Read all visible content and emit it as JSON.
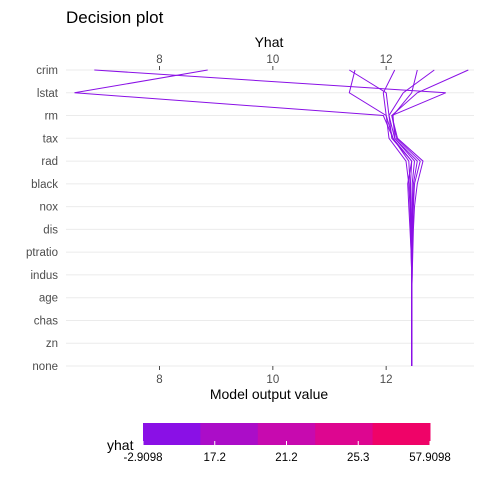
{
  "chart_data": {
    "type": "line",
    "title": "Decision plot",
    "xlabel_top": "Yhat",
    "xlabel": "Model output value",
    "xlim": [
      6.35,
      13.55
    ],
    "x_ticks": [
      8,
      10,
      12
    ],
    "features": [
      "none",
      "zn",
      "chas",
      "age",
      "indus",
      "ptratio",
      "dis",
      "nox",
      "black",
      "rad",
      "tax",
      "rm",
      "lstat",
      "crim"
    ],
    "series": [
      {
        "values": [
          12.45,
          12.45,
          12.45,
          12.45,
          12.45,
          12.44,
          12.43,
          12.42,
          12.4,
          12.35,
          12.05,
          12.0,
          11.35,
          11.45
        ]
      },
      {
        "values": [
          12.45,
          12.45,
          12.45,
          12.45,
          12.46,
          12.46,
          12.46,
          12.47,
          12.48,
          12.55,
          12.15,
          12.05,
          12.0,
          11.35
        ]
      },
      {
        "values": [
          12.45,
          12.45,
          12.45,
          12.45,
          12.46,
          12.47,
          12.48,
          12.5,
          12.55,
          12.65,
          12.2,
          12.1,
          12.55,
          13.45
        ]
      },
      {
        "values": [
          12.45,
          12.45,
          12.45,
          12.45,
          12.45,
          12.44,
          12.42,
          12.4,
          12.38,
          12.45,
          12.1,
          12.05,
          12.3,
          12.85
        ]
      },
      {
        "values": [
          12.45,
          12.45,
          12.45,
          12.45,
          12.45,
          12.45,
          12.45,
          12.46,
          12.46,
          12.5,
          12.15,
          12.12,
          12.45,
          12.55
        ]
      },
      {
        "values": [
          12.45,
          12.45,
          12.45,
          12.45,
          12.45,
          12.45,
          12.44,
          12.43,
          12.42,
          12.4,
          12.12,
          12.0,
          11.95,
          12.15
        ]
      },
      {
        "values": [
          12.45,
          12.45,
          12.45,
          12.45,
          12.45,
          12.45,
          12.45,
          12.44,
          12.43,
          12.45,
          12.12,
          11.95,
          6.5,
          8.85
        ]
      },
      {
        "values": [
          12.45,
          12.45,
          12.45,
          12.45,
          12.45,
          12.46,
          12.47,
          12.48,
          12.5,
          12.6,
          12.18,
          12.1,
          13.05,
          6.85
        ]
      }
    ],
    "legend": {
      "title": "yhat",
      "labels": [
        "-2.9098",
        "17.2",
        "21.2",
        "25.3",
        "57.9098"
      ],
      "colors": [
        "#8a10e6",
        "#ab0dc8",
        "#c70aaf",
        "#dd0690",
        "#ef0368"
      ]
    },
    "line_color": "#8a10e6",
    "grid": true
  }
}
